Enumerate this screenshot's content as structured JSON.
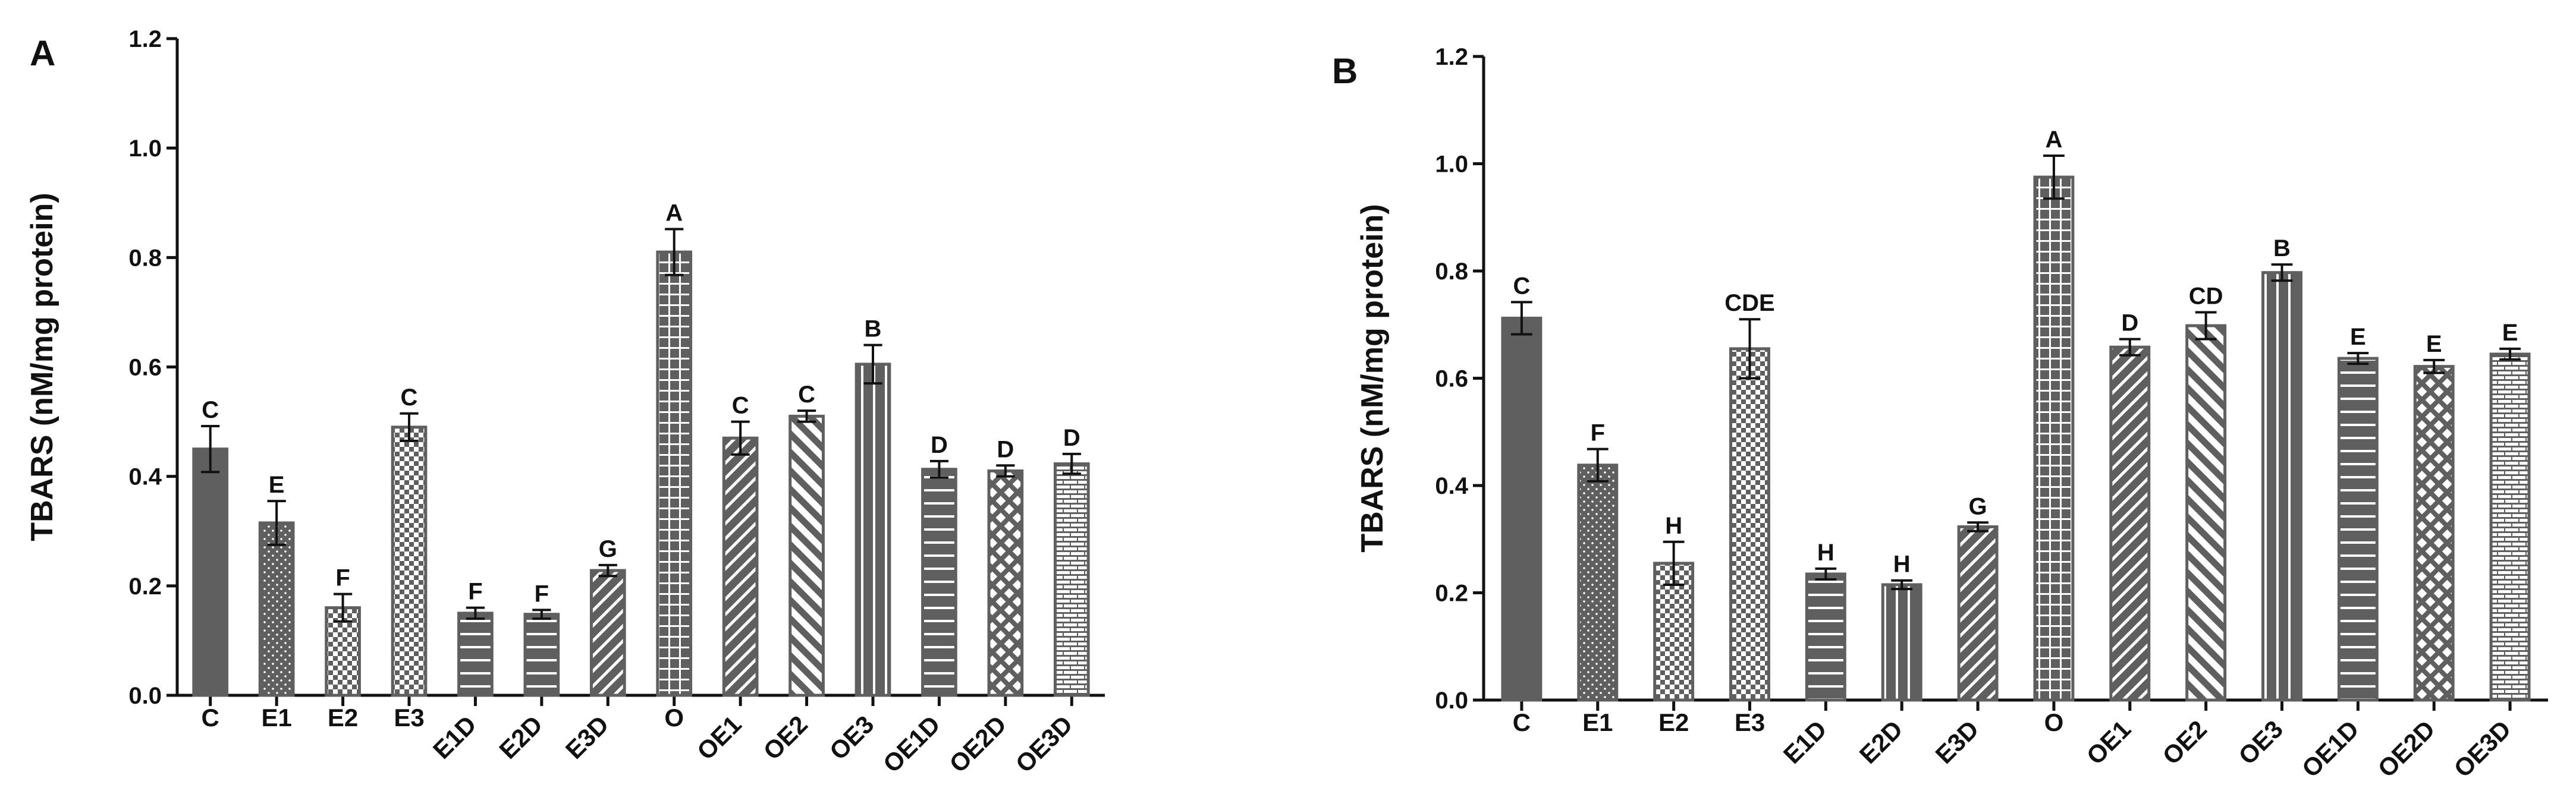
{
  "chart_data": [
    {
      "panel": "A",
      "type": "bar",
      "title": "",
      "xlabel": "",
      "ylabel": "TBARS (nM/mg protein)",
      "ylim": [
        0,
        1.2
      ],
      "yticks": [
        0.0,
        0.2,
        0.4,
        0.6,
        0.8,
        1.0,
        1.2
      ],
      "ytick_labels": [
        "0.0",
        "0.2",
        "0.4",
        "0.6",
        "0.8",
        "1.0",
        "1.2"
      ],
      "categories": [
        "C",
        "E1",
        "E2",
        "E3",
        "E1D",
        "E2D",
        "E3D",
        "O",
        "OE1",
        "OE2",
        "OE3",
        "OE1D",
        "OE2D",
        "OE3D"
      ],
      "values": [
        0.45,
        0.315,
        0.16,
        0.49,
        0.15,
        0.148,
        0.228,
        0.81,
        0.47,
        0.51,
        0.605,
        0.413,
        0.41,
        0.423
      ],
      "errors": [
        0.042,
        0.04,
        0.025,
        0.025,
        0.01,
        0.008,
        0.01,
        0.042,
        0.03,
        0.01,
        0.035,
        0.015,
        0.01,
        0.018
      ],
      "significance": [
        "C",
        "E",
        "F",
        "C",
        "F",
        "F",
        "G",
        "A",
        "C",
        "C",
        "B",
        "D",
        "D",
        "D"
      ],
      "patterns": [
        "solid",
        "dots",
        "checker",
        "checker",
        "hlines",
        "hlines",
        "diag",
        "grid",
        "diag",
        "diag-back",
        "vlines",
        "hlines",
        "lattice",
        "brick"
      ],
      "grid": false
    },
    {
      "panel": "B",
      "type": "bar",
      "title": "",
      "xlabel": "",
      "ylabel": "TBARS (nM/mg protein)",
      "ylim": [
        0,
        1.2
      ],
      "yticks": [
        0.0,
        0.2,
        0.4,
        0.6,
        0.8,
        1.0,
        1.2
      ],
      "ytick_labels": [
        "0.0",
        "0.2",
        "0.4",
        "0.6",
        "0.8",
        "1.0",
        "1.2"
      ],
      "categories": [
        "C",
        "E1",
        "E2",
        "E3",
        "E1D",
        "E2D",
        "E3D",
        "O",
        "OE1",
        "OE2",
        "OE3",
        "OE1D",
        "OE2D",
        "OE3D"
      ],
      "values": [
        0.712,
        0.438,
        0.255,
        0.655,
        0.235,
        0.215,
        0.323,
        0.975,
        0.658,
        0.698,
        0.797,
        0.637,
        0.622,
        0.645
      ],
      "errors": [
        0.03,
        0.03,
        0.04,
        0.055,
        0.01,
        0.008,
        0.008,
        0.04,
        0.015,
        0.025,
        0.015,
        0.01,
        0.012,
        0.01
      ],
      "significance": [
        "C",
        "F",
        "H",
        "CDE",
        "H",
        "H",
        "G",
        "A",
        "D",
        "CD",
        "B",
        "E",
        "E",
        "E"
      ],
      "patterns": [
        "solid",
        "dots",
        "checker",
        "checker",
        "hlines",
        "vlines",
        "diag",
        "grid",
        "diag",
        "diag-back",
        "vlines",
        "hlines",
        "lattice",
        "brick"
      ],
      "grid": false
    }
  ]
}
